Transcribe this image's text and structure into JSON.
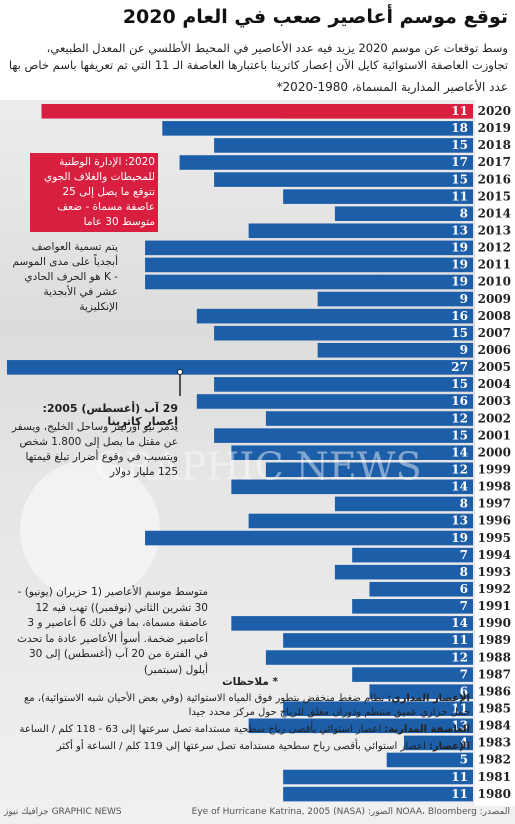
{
  "chart_data": {
    "type": "bar",
    "title": "توقع موسم أعاصير صعب في العام 2020",
    "subtitle": "وسط توقعات عن موسم 2020 يزيد فيه عدد الأعاصير في المحيط الأطلسي عن المعدل الطبيعي، تجاوزت العاصفة الاستوائية كايل الآن إعصار كاترينا باعتبارها العاصفة الـ 11 التي تم تعريفها باسم خاص بها",
    "x_label": "عدد الأعاصير المدارية المسماة، 1980-2020*",
    "categories": [
      "2020",
      "2019",
      "2018",
      "2017",
      "2016",
      "2015",
      "2014",
      "2013",
      "2012",
      "2011",
      "2010",
      "2009",
      "2008",
      "2007",
      "2006",
      "2005",
      "2004",
      "2003",
      "2002",
      "2001",
      "2000",
      "1999",
      "1998",
      "1997",
      "1996",
      "1995",
      "1994",
      "1993",
      "1992",
      "1991",
      "1990",
      "1989",
      "1988",
      "1987",
      "1986",
      "1985",
      "1984",
      "1983",
      "1982",
      "1981",
      "1980"
    ],
    "values": [
      11,
      18,
      15,
      17,
      15,
      11,
      8,
      13,
      19,
      19,
      19,
      9,
      16,
      15,
      9,
      27,
      15,
      16,
      12,
      15,
      14,
      12,
      14,
      8,
      13,
      19,
      7,
      8,
      6,
      7,
      14,
      11,
      12,
      7,
      6,
      11,
      13,
      4,
      5,
      11,
      11
    ],
    "color": "#1d5ea9",
    "forecast": {
      "value": 25,
      "color": "#d81f3f"
    },
    "annotations": {
      "forecast": "2020: الإدارة الوطنية للمحيطات والغلاف الجوي تتوقع ما يصل إلى 25 عاصفة مسماة - ضعف متوسط 30 عاما",
      "naming": "يتم تسمية العواصف أبجدياً على مدى الموسم - K هو الحرف الحادي عشر في الأبجدية الإنكليزية",
      "katrina_title": "29 آب (أغسطس) 2005: إعصار كاترينا",
      "katrina_text": "يدمر نيو أورلينز وساحل الخليج، ويسفر عن مقتل ما يصل إلى 1.800 شخص ويتسبب في وقوع أضرار تبلغ قيمتها 125 مليار دولار",
      "average": "متوسط موسم الأعاصير (1 حزيران (يونيو) - 30 تشرين الثاني (نوفمبر)) تهب فيه 12 عاصفة مسماة، بما في ذلك 6 أعاصير و 3 أعاصير ضخمة. أسوأ الأعاصير عادة ما تحدث في الفترة من 20 آب (أغسطس) إلى 30 أيلول (سبتمبر)"
    },
    "notes": {
      "header": "* ملاحظات",
      "items": [
        {
          "term": "الإعصار المداري:",
          "text": "نظام ضغط منخفض يتطور فوق المياه الاستوائية (وفي بعض الأحيان شبه الاستوائية)، مع حمل حراري عميق منتظم ودوران مغلق للرياح حول مركز محدد جيدا"
        },
        {
          "term": "العاصفة المدارية:",
          "text": "اعصار استوائي بأقصى رياح سطحية مستدامة تصل سرعتها إلى 63 - 118 كلم / الساعة"
        },
        {
          "term": "الإعصار:",
          "text": "اعصار استوائي بأقصى رياح سطحية مستدامة تصل سرعتها إلى 119 كلم / الساعة أو أكثر"
        }
      ]
    },
    "watermark": "GRAPHIC NEWS",
    "source": "المصدر: NOAA، Bloomberg الصور: (Eye of Hurricane Katrina, 2005 (NASA",
    "credit": "GRAPHIC NEWS جرافيك نيوز"
  }
}
